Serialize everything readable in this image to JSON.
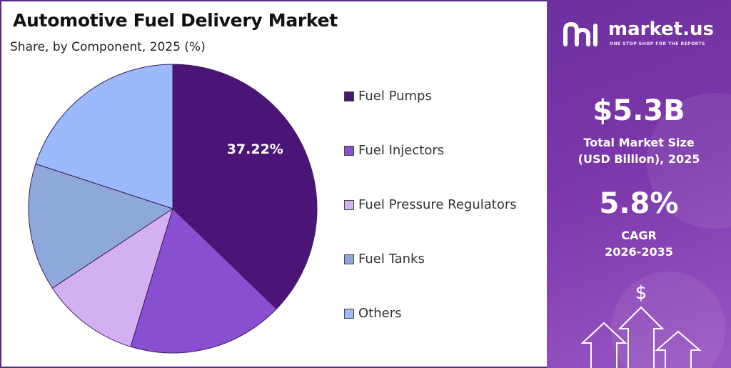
{
  "chart_data": {
    "type": "pie",
    "title": "Automotive Fuel Delivery Market",
    "subtitle": "Share, by Component, 2025 (%)",
    "slice_label": "37.22%",
    "legend_position": "right",
    "slices": [
      {
        "name": "Fuel Pumps",
        "value": 37.22,
        "color": "#4a1577"
      },
      {
        "name": "Fuel Injectors",
        "value": 17.5,
        "color": "#8a4fd0"
      },
      {
        "name": "Fuel Pressure Regulators",
        "value": 11.0,
        "color": "#d3b0f2"
      },
      {
        "name": "Fuel Tanks",
        "value": 14.3,
        "color": "#8fa8dc"
      },
      {
        "name": "Others",
        "value": 19.98,
        "color": "#9cb9fb"
      }
    ]
  },
  "sidebar": {
    "brand_name": "market.us",
    "brand_tagline": "ONE STOP SHOP FOR THE REPORTS",
    "market_size_value": "$5.3B",
    "market_size_label_line1": "Total Market Size",
    "market_size_label_line2": "(USD Billion), 2025",
    "cagr_value": "5.8%",
    "cagr_label_line1": "CAGR",
    "cagr_label_line2": "2026-2035",
    "dollar_symbol": "$"
  },
  "colors": {
    "frame": "#5b2a86",
    "sidebar_bg": "#7b37ab"
  }
}
